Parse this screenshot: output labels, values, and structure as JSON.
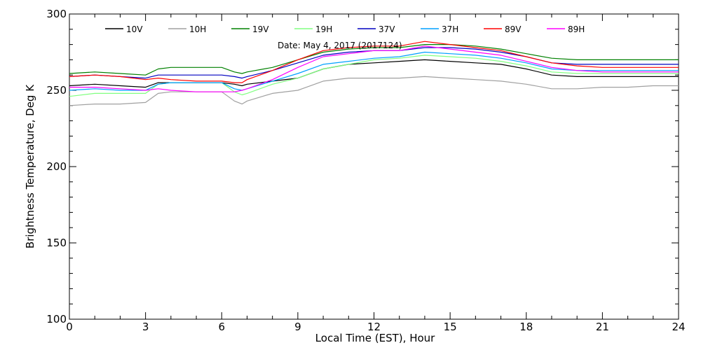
{
  "chart_data": {
    "type": "line",
    "title": "",
    "annotation": "Date: May  4, 2017 (2017124)",
    "xlabel": "Local Time (EST), Hour",
    "ylabel": "Brightness Temperature, Deg K",
    "xlim": [
      0,
      24
    ],
    "ylim": [
      100,
      300
    ],
    "xticks": [
      0,
      3,
      6,
      9,
      12,
      15,
      18,
      21,
      24
    ],
    "yticks": [
      100,
      150,
      200,
      250,
      300
    ],
    "grid": false,
    "legend": "top",
    "x": [
      0,
      1,
      2,
      3,
      3.5,
      4,
      5,
      6,
      6.5,
      6.8,
      7,
      8,
      9,
      10,
      11,
      12,
      13,
      14,
      15,
      16,
      17,
      18,
      19,
      20,
      21,
      22,
      23,
      24
    ],
    "series": [
      {
        "name": "10V",
        "color": "#000000",
        "values": [
          253,
          254,
          253,
          252,
          255,
          255,
          255,
          255,
          254,
          253,
          254,
          256,
          258,
          264,
          267,
          268,
          269,
          270,
          269,
          268,
          267,
          264,
          260,
          259,
          259,
          259,
          259,
          259
        ]
      },
      {
        "name": "10H",
        "color": "#a0a0a0",
        "values": [
          240,
          241,
          241,
          242,
          248,
          249,
          249,
          249,
          243,
          241,
          243,
          248,
          250,
          256,
          258,
          258,
          258,
          259,
          258,
          257,
          256,
          254,
          251,
          251,
          252,
          252,
          253,
          253
        ]
      },
      {
        "name": "19V",
        "color": "#008000",
        "values": [
          261,
          262,
          261,
          260,
          264,
          265,
          265,
          265,
          262,
          261,
          262,
          265,
          270,
          275,
          277,
          278,
          278,
          280,
          280,
          279,
          277,
          274,
          271,
          270,
          270,
          270,
          270,
          270
        ]
      },
      {
        "name": "19H",
        "color": "#80ff80",
        "values": [
          246,
          248,
          248,
          248,
          254,
          255,
          255,
          255,
          249,
          247,
          248,
          254,
          258,
          264,
          267,
          270,
          271,
          273,
          272,
          271,
          269,
          266,
          262,
          261,
          261,
          261,
          261,
          261
        ]
      },
      {
        "name": "37V",
        "color": "#0000c0",
        "values": [
          259,
          260,
          259,
          258,
          260,
          260,
          260,
          260,
          259,
          258,
          259,
          263,
          268,
          273,
          275,
          276,
          276,
          278,
          278,
          277,
          275,
          272,
          268,
          267,
          267,
          267,
          267,
          267
        ]
      },
      {
        "name": "37H",
        "color": "#00a0ff",
        "values": [
          250,
          251,
          250,
          250,
          254,
          255,
          255,
          255,
          251,
          250,
          251,
          256,
          261,
          267,
          269,
          271,
          272,
          275,
          274,
          273,
          271,
          268,
          264,
          263,
          263,
          263,
          263,
          263
        ]
      },
      {
        "name": "89V",
        "color": "#ff0000",
        "values": [
          259,
          260,
          259,
          257,
          258,
          257,
          256,
          256,
          255,
          255,
          257,
          263,
          270,
          276,
          278,
          279,
          279,
          282,
          280,
          278,
          276,
          272,
          268,
          266,
          265,
          265,
          265,
          265
        ]
      },
      {
        "name": "89H",
        "color": "#ff00ff",
        "values": [
          252,
          252,
          251,
          250,
          251,
          250,
          249,
          249,
          249,
          250,
          251,
          257,
          265,
          272,
          274,
          276,
          276,
          279,
          277,
          275,
          273,
          269,
          265,
          263,
          262,
          262,
          262,
          262
        ]
      }
    ]
  }
}
